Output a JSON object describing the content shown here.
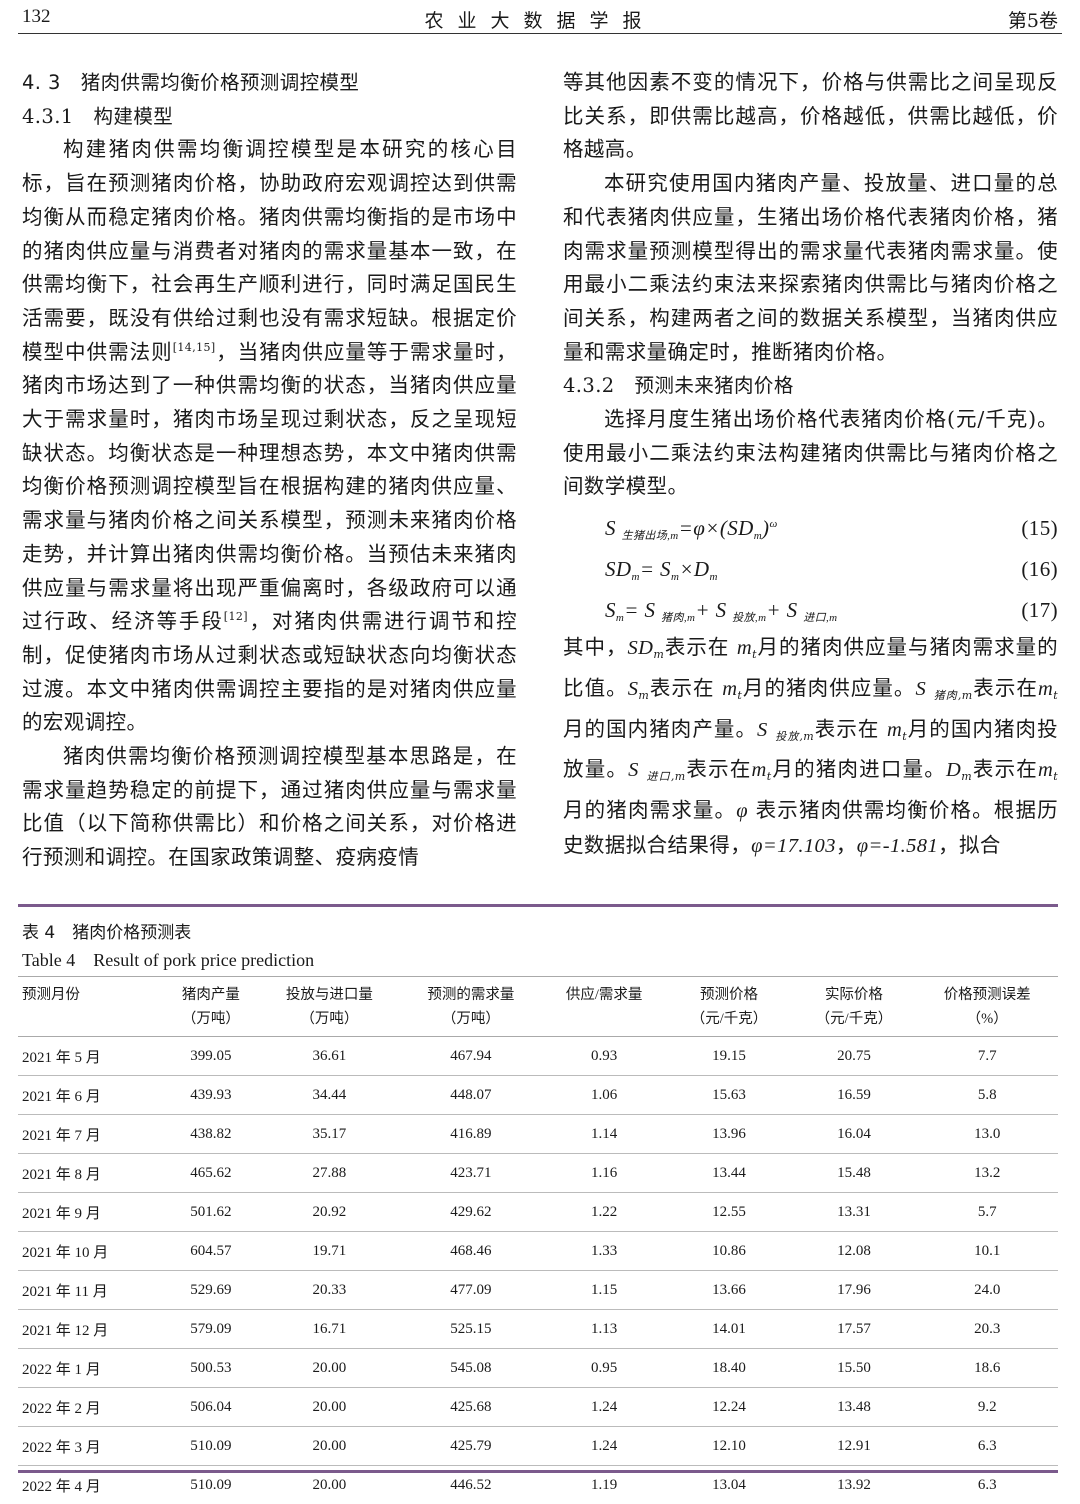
{
  "header": {
    "page_number": "132",
    "journal": "农业大数据学报",
    "volume": "第5卷"
  },
  "left": {
    "h_4_3": "4. 3　猪肉供需均衡价格预测调控模型",
    "h_4_3_1": "4.3.1　构建模型",
    "p1a": "构建猪肉供需均衡调控模型是本研究的核心目标，旨在预测猪肉价格，协助政府宏观调控达到供需均衡从而稳定猪肉价格。猪肉供需均衡指的是市场中的猪肉供应量与消费者对猪肉的需求量基本一致，在供需均衡下，社会再生产顺利进行，同时满足国民生活需要，既没有供给过剩也没有需求短缺。根据定价模型中供需法则",
    "cite1": "[14,15]",
    "p1b": "，当猪肉供应量等于需求量时，猪肉市场达到了一种供需均衡的状态，当猪肉供应量大于需求量时，猪肉市场呈现过剩状态，反之呈现短缺状态。均衡状态是一种理想态势，本文中猪肉供需均衡价格预测调控模型旨在根据构建的猪肉供应量、需求量与猪肉价格之间关系模型，预测未来猪肉价格走势，并计算出猪肉供需均衡价格。当预估未来猪肉供应量与需求量将出现严重偏离时，各级政府可以通过行政、经济等手段",
    "cite2": "[12]",
    "p1c": "，对猪肉供需进行调节和控制，促使猪肉市场从过剩状态或短缺状态向均衡状态过渡。本文中猪肉供需调控主要指的是对猪肉供应量的宏观调控。",
    "p2": "猪肉供需均衡价格预测调控模型基本思路是，在需求量趋势稳定的前提下，通过猪肉供应量与需求量比值（以下简称供需比）和价格之间关系，对价格进行预测和调控。在国家政策调整、疫病疫情"
  },
  "right": {
    "p3": "等其他因素不变的情况下，价格与供需比之间呈现反比关系，即供需比越高，价格越低，供需比越低，价格越高。",
    "p4": "本研究使用国内猪肉产量、投放量、进口量的总和代表猪肉供应量，生猪出场价格代表猪肉价格，猪肉需求量预测模型得出的需求量代表猪肉需求量。使用最小二乘法约束法来探索猪肉供需比与猪肉价格之间关系，构建两者之间的数据关系模型，当猪肉供应量和需求量确定时，推断猪肉价格。",
    "h_4_3_2": "4.3.2　预测未来猪肉价格",
    "p5": "选择月度生猪出场价格代表猪肉价格(元/千克)。使用最小二乘法约束法构建猪肉供需比与猪肉价格之间数学模型。",
    "equations": [
      {
        "number": "(15)",
        "lhs": "S",
        "lhs_sub": "生猪出场,m",
        "rhs": "=φ×(SD",
        "rhs_sub": "m",
        "rhs_tail": ")",
        "sup": "ω"
      },
      {
        "number": "(16)",
        "text": "SD",
        "s1": "m",
        "t2": "= S",
        "s2": "m",
        "t3": "×D",
        "s3": "m"
      },
      {
        "number": "(17)",
        "text": "S",
        "s1": "m",
        "t2": "= S",
        "s2": "猪肉,m",
        "t3": "+ S",
        "s3": "投放,m",
        "t4": "+ S",
        "s4": "进口,m"
      }
    ],
    "p6": {
      "a": "其中，",
      "SD": "SD",
      "m": "m",
      "b": "表示在",
      "mt": "m",
      "t": "t",
      "c": "月的猪肉供应量与猪肉需求量的比值。",
      "S": "S",
      "d": "表示在",
      "e": "月的猪肉供应量。",
      "pork": "猪肉,m",
      "f": "表示在",
      "g": "月的国内猪肉产量。",
      "release": "投放,m",
      "h": "表示在",
      "i": "月的国内猪肉投放量。",
      "import": "进口,m",
      "j": "表示在",
      "k": "月的猪肉进口量。",
      "D": "D",
      "l": "表示在",
      "n": "月的猪肉需求量。",
      "phi": "φ",
      "o": "表示猪肉供需均衡价格。根据历史数据拟合结果得，",
      "phi_val": "φ=17.103",
      "sep": "，",
      "omega_val": "φ=-1.581",
      "p": "，拟合"
    }
  },
  "table": {
    "caption_cn": "表 4　猪肉价格预测表",
    "caption_en": "Table 4　Result of pork price prediction",
    "accent_color": "#7b5a8c",
    "headers": [
      {
        "l1": "预测月份",
        "l2": ""
      },
      {
        "l1": "猪肉产量",
        "l2": "（万吨）"
      },
      {
        "l1": "投放与进口量",
        "l2": "（万吨）"
      },
      {
        "l1": "预测的需求量",
        "l2": "（万吨）"
      },
      {
        "l1": "供应/需求量",
        "l2": ""
      },
      {
        "l1": "预测价格",
        "l2": "（元/千克）"
      },
      {
        "l1": "实际价格",
        "l2": "（元/千克）"
      },
      {
        "l1": "价格预测误差",
        "l2": "（%）"
      }
    ],
    "rows": [
      [
        "2021 年 5 月",
        "399.05",
        "36.61",
        "467.94",
        "0.93",
        "19.15",
        "20.75",
        "7.7"
      ],
      [
        "2021 年 6 月",
        "439.93",
        "34.44",
        "448.07",
        "1.06",
        "15.63",
        "16.59",
        "5.8"
      ],
      [
        "2021 年 7 月",
        "438.82",
        "35.17",
        "416.89",
        "1.14",
        "13.96",
        "16.04",
        "13.0"
      ],
      [
        "2021 年 8 月",
        "465.62",
        "27.88",
        "423.71",
        "1.16",
        "13.44",
        "15.48",
        "13.2"
      ],
      [
        "2021 年 9 月",
        "501.62",
        "20.92",
        "429.62",
        "1.22",
        "12.55",
        "13.31",
        "5.7"
      ],
      [
        "2021 年 10 月",
        "604.57",
        "19.71",
        "468.46",
        "1.33",
        "10.86",
        "12.08",
        "10.1"
      ],
      [
        "2021 年 11 月",
        "529.69",
        "20.33",
        "477.09",
        "1.15",
        "13.66",
        "17.96",
        "24.0"
      ],
      [
        "2021 年 12 月",
        "579.09",
        "16.71",
        "525.15",
        "1.13",
        "14.01",
        "17.57",
        "20.3"
      ],
      [
        "2022 年 1 月",
        "500.53",
        "20.00",
        "545.08",
        "0.95",
        "18.40",
        "15.50",
        "18.6"
      ],
      [
        "2022 年 2 月",
        "506.04",
        "20.00",
        "425.68",
        "1.24",
        "12.24",
        "13.48",
        "9.2"
      ],
      [
        "2022 年 3 月",
        "510.09",
        "20.00",
        "425.79",
        "1.24",
        "12.10",
        "12.91",
        "6.3"
      ],
      [
        "2022 年 4 月",
        "510.09",
        "20.00",
        "446.52",
        "1.19",
        "13.04",
        "13.92",
        "6.3"
      ]
    ]
  }
}
